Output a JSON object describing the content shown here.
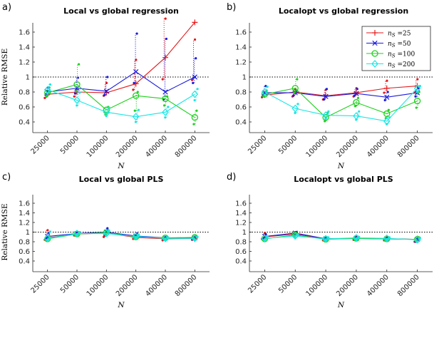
{
  "chart_data": {
    "type": "line",
    "x_categories": [
      "25000",
      "50000",
      "100000",
      "200000",
      "400000",
      "800000"
    ],
    "xlabel": "N",
    "ylabel": "Relative RMSE",
    "ylim": [
      0.3,
      1.8
    ],
    "yticks": [
      "0.4",
      "0.6",
      "0.8",
      "1",
      "1.2",
      "1.4",
      "1.6"
    ],
    "reference_line": 1,
    "legend": {
      "placement": "top-right of panel b",
      "entries": [
        {
          "label": "n_S =25",
          "text_n": "n",
          "text_sub": "S",
          "text_rest": " =25",
          "color": "#e41a1c",
          "marker": "plus"
        },
        {
          "label": "n_S =50",
          "text_n": "n",
          "text_sub": "S",
          "text_rest": " =50",
          "color": "#1a1adf",
          "marker": "x"
        },
        {
          "label": "n_S =100",
          "text_n": "n",
          "text_sub": "S",
          "text_rest": " =100",
          "color": "#1fd11f",
          "marker": "circle"
        },
        {
          "label": "n_S =200",
          "text_n": "n",
          "text_sub": "S",
          "text_rest": " =200",
          "color": "#19e6e6",
          "marker": "diamond"
        }
      ]
    },
    "panels": [
      {
        "label": "a)",
        "title": "Local vs global regression",
        "series": [
          {
            "name": "n_S =25",
            "values": [
              0.77,
              0.8,
              0.79,
              0.91,
              1.26,
              1.73
            ],
            "scatter": [
              [
                0.72,
                0.81
              ],
              [
                0.74,
                0.84
              ],
              [
                0.75,
                0.92
              ],
              [
                0.83,
                1.23
              ],
              [
                0.97,
                1.78
              ],
              [
                0.96,
                1.5
              ]
            ]
          },
          {
            "name": "n_S =50",
            "values": [
              0.8,
              0.85,
              0.81,
              1.07,
              0.8,
              1.0
            ],
            "scatter": [
              [
                0.76,
                0.86
              ],
              [
                0.78,
                0.99
              ],
              [
                0.76,
                1.0
              ],
              [
                0.92,
                1.58
              ],
              [
                0.7,
                1.51
              ],
              [
                0.92,
                1.25
              ]
            ]
          },
          {
            "name": "n_S =100",
            "values": [
              0.79,
              0.9,
              0.56,
              0.75,
              0.71,
              0.46
            ],
            "scatter": [
              [
                0.74,
                0.86
              ],
              [
                0.81,
                1.17
              ],
              [
                0.5,
                0.6
              ],
              [
                0.55,
                0.8
              ],
              [
                0.62,
                0.74
              ],
              [
                0.37,
                0.55
              ]
            ]
          },
          {
            "name": "n_S =200",
            "values": [
              0.83,
              0.69,
              0.53,
              0.47,
              0.53,
              0.77
            ],
            "scatter": [
              [
                0.78,
                0.9
              ],
              [
                0.62,
                0.79
              ],
              [
                0.48,
                0.59
              ],
              [
                0.4,
                0.56
              ],
              [
                0.46,
                0.6
              ],
              [
                0.69,
                0.84
              ]
            ]
          }
        ]
      },
      {
        "label": "b)",
        "title": "Localopt vs global regression",
        "series": [
          {
            "name": "n_S =25",
            "values": [
              0.76,
              0.8,
              0.75,
              0.79,
              0.85,
              0.88
            ],
            "scatter": [
              [
                0.73,
                0.79
              ],
              [
                0.74,
                0.84
              ],
              [
                0.7,
                0.83
              ],
              [
                0.74,
                0.85
              ],
              [
                0.79,
                0.95
              ],
              [
                0.8,
                0.97
              ]
            ]
          },
          {
            "name": "n_S =50",
            "values": [
              0.79,
              0.79,
              0.74,
              0.78,
              0.73,
              0.79
            ],
            "scatter": [
              [
                0.75,
                0.88
              ],
              [
                0.75,
                0.82
              ],
              [
                0.7,
                0.84
              ],
              [
                0.75,
                0.84
              ],
              [
                0.69,
                0.8
              ],
              [
                0.74,
                0.85
              ]
            ]
          },
          {
            "name": "n_S =100",
            "values": [
              0.77,
              0.85,
              0.46,
              0.66,
              0.51,
              0.68
            ],
            "scatter": [
              [
                0.74,
                0.82
              ],
              [
                0.79,
                0.97
              ],
              [
                0.41,
                0.52
              ],
              [
                0.61,
                0.72
              ],
              [
                0.45,
                0.56
              ],
              [
                0.59,
                0.8
              ]
            ]
          },
          {
            "name": "n_S =200",
            "values": [
              0.8,
              0.58,
              0.49,
              0.48,
              0.41,
              0.85
            ],
            "scatter": [
              [
                0.76,
                0.87
              ],
              [
                0.52,
                0.64
              ],
              [
                0.44,
                0.54
              ],
              [
                0.43,
                0.54
              ],
              [
                0.37,
                0.46
              ],
              [
                0.8,
                0.88
              ]
            ]
          }
        ]
      },
      {
        "label": "c)",
        "title": "Local vs global PLS",
        "series": [
          {
            "name": "n_S =25",
            "values": [
              0.88,
              0.96,
              0.98,
              0.89,
              0.86,
              0.87
            ],
            "scatter": [
              [
                0.84,
                1.04
              ],
              [
                0.93,
                0.99
              ],
              [
                0.9,
                1.02
              ],
              [
                0.86,
                0.93
              ],
              [
                0.83,
                0.89
              ],
              [
                0.84,
                0.9
              ]
            ]
          },
          {
            "name": "n_S =50",
            "values": [
              0.91,
              0.97,
              1.0,
              0.92,
              0.88,
              0.88
            ],
            "scatter": [
              [
                0.86,
                0.98
              ],
              [
                0.94,
                1.0
              ],
              [
                0.94,
                1.08
              ],
              [
                0.88,
                0.97
              ],
              [
                0.85,
                0.9
              ],
              [
                0.85,
                0.91
              ]
            ]
          },
          {
            "name": "n_S =100",
            "values": [
              0.86,
              0.96,
              0.99,
              0.9,
              0.88,
              0.89
            ],
            "scatter": [
              [
                0.82,
                0.92
              ],
              [
                0.94,
                0.99
              ],
              [
                0.95,
                1.04
              ],
              [
                0.87,
                0.93
              ],
              [
                0.85,
                0.9
              ],
              [
                0.86,
                0.91
              ]
            ]
          },
          {
            "name": "n_S =200",
            "values": [
              0.87,
              0.97,
              0.97,
              0.91,
              0.87,
              0.87
            ],
            "scatter": [
              [
                0.84,
                1.01
              ],
              [
                0.94,
                1.0
              ],
              [
                0.93,
                1.03
              ],
              [
                0.88,
                0.95
              ],
              [
                0.84,
                0.89
              ],
              [
                0.84,
                0.9
              ]
            ]
          }
        ]
      },
      {
        "label": "d)",
        "title": "Localopt vs global PLS",
        "series": [
          {
            "name": "n_S =25",
            "values": [
              0.9,
              0.96,
              0.86,
              0.87,
              0.86,
              0.85
            ],
            "scatter": [
              [
                0.86,
                0.98
              ],
              [
                0.93,
                1.0
              ],
              [
                0.83,
                0.88
              ],
              [
                0.84,
                0.9
              ],
              [
                0.83,
                0.88
              ],
              [
                0.8,
                0.9
              ]
            ]
          },
          {
            "name": "n_S =50",
            "values": [
              0.91,
              0.98,
              0.86,
              0.87,
              0.86,
              0.85
            ],
            "scatter": [
              [
                0.87,
                0.96
              ],
              [
                0.94,
                1.0
              ],
              [
                0.83,
                0.88
              ],
              [
                0.84,
                0.9
              ],
              [
                0.83,
                0.89
              ],
              [
                0.8,
                0.89
              ]
            ]
          },
          {
            "name": "n_S =100",
            "values": [
              0.86,
              0.94,
              0.85,
              0.87,
              0.86,
              0.85
            ],
            "scatter": [
              [
                0.83,
                0.9
              ],
              [
                0.91,
                0.97
              ],
              [
                0.83,
                0.88
              ],
              [
                0.84,
                0.9
              ],
              [
                0.83,
                0.88
              ],
              [
                0.81,
                0.89
              ]
            ]
          },
          {
            "name": "n_S =200",
            "values": [
              0.87,
              0.92,
              0.86,
              0.88,
              0.87,
              0.84
            ],
            "scatter": [
              [
                0.84,
                0.91
              ],
              [
                0.88,
                0.95
              ],
              [
                0.83,
                0.89
              ],
              [
                0.85,
                0.9
              ],
              [
                0.84,
                0.89
              ],
              [
                0.8,
                0.88
              ]
            ]
          }
        ]
      }
    ]
  }
}
